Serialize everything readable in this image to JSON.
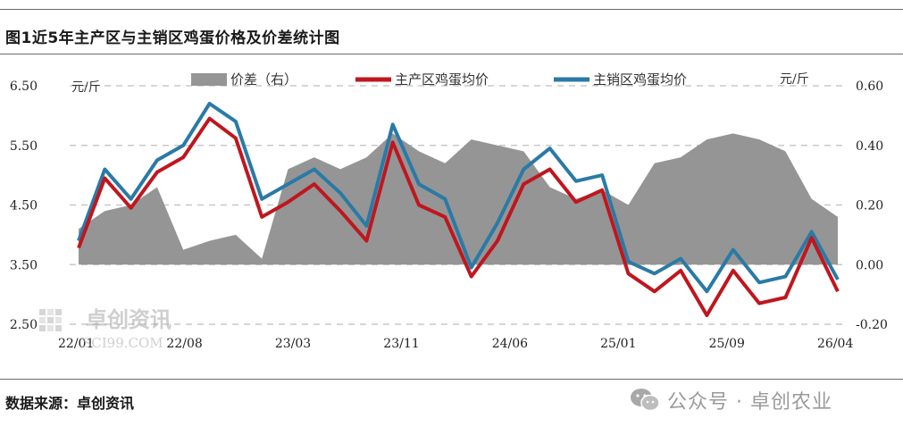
{
  "figure": {
    "title": "图1近5年主产区与主销区鸡蛋价格及价差统计图",
    "source": "数据来源：卓创资讯",
    "wechat": "公众号 · 卓创农业"
  },
  "watermark": {
    "name": "卓创资讯",
    "site": "SCI99.COM"
  },
  "colors": {
    "spread": "#959595",
    "main_producing": "#c0161e",
    "main_selling": "#2a7aa6",
    "grid": "#c8c8c8"
  },
  "chart_data": {
    "type": "line",
    "left_unit": "元/斤",
    "right_unit": "元/斤",
    "y_left": {
      "min": 2.5,
      "max": 6.5,
      "ticks": [
        "2.50",
        "3.50",
        "4.50",
        "5.50",
        "6.50"
      ]
    },
    "y_right": {
      "min": -0.2,
      "max": 0.6,
      "ticks": [
        "-0.20",
        "0.00",
        "0.20",
        "0.40",
        "0.60"
      ]
    },
    "x_ticks": [
      "22/01",
      "22/08",
      "23/03",
      "23/11",
      "24/06",
      "25/01",
      "25/09",
      "26/04"
    ],
    "x": [
      "22/01",
      "22/03",
      "22/05",
      "22/07",
      "22/08",
      "22/09",
      "22/10",
      "22/11",
      "23/01",
      "23/03",
      "23/05",
      "23/07",
      "23/09",
      "23/11",
      "24/01",
      "24/03",
      "24/05",
      "24/06",
      "24/08",
      "24/10",
      "24/12",
      "25/01",
      "25/03",
      "25/05",
      "25/07",
      "25/09",
      "25/11",
      "26/01",
      "26/03",
      "26/04"
    ],
    "series": [
      {
        "name": "价差（右）",
        "axis": "right",
        "kind": "area",
        "values": [
          0.12,
          0.18,
          0.2,
          0.26,
          0.05,
          0.08,
          0.1,
          0.02,
          0.32,
          0.36,
          0.32,
          0.36,
          0.44,
          0.38,
          0.34,
          0.42,
          0.4,
          0.38,
          0.26,
          0.22,
          0.25,
          0.2,
          0.34,
          0.36,
          0.42,
          0.44,
          0.42,
          0.38,
          0.22,
          0.16
        ]
      },
      {
        "name": "主产区鸡蛋均价",
        "axis": "left",
        "kind": "line",
        "values": [
          3.78,
          4.95,
          4.45,
          5.05,
          5.3,
          5.95,
          5.62,
          4.3,
          4.55,
          4.85,
          4.4,
          3.9,
          5.55,
          4.5,
          4.3,
          3.3,
          3.9,
          4.85,
          5.1,
          4.55,
          4.75,
          3.35,
          3.05,
          3.4,
          2.65,
          3.4,
          2.85,
          2.95,
          3.95,
          3.05
        ]
      },
      {
        "name": "主销区鸡蛋均价",
        "axis": "left",
        "kind": "line",
        "values": [
          3.9,
          5.1,
          4.6,
          5.25,
          5.5,
          6.2,
          5.9,
          4.6,
          4.85,
          5.1,
          4.7,
          4.15,
          5.85,
          4.85,
          4.6,
          3.45,
          4.2,
          5.1,
          5.45,
          4.9,
          5.0,
          3.55,
          3.35,
          3.6,
          3.05,
          3.75,
          3.2,
          3.3,
          4.05,
          3.25
        ]
      }
    ],
    "legend_position": "top",
    "grid": "horizontal dashed"
  }
}
